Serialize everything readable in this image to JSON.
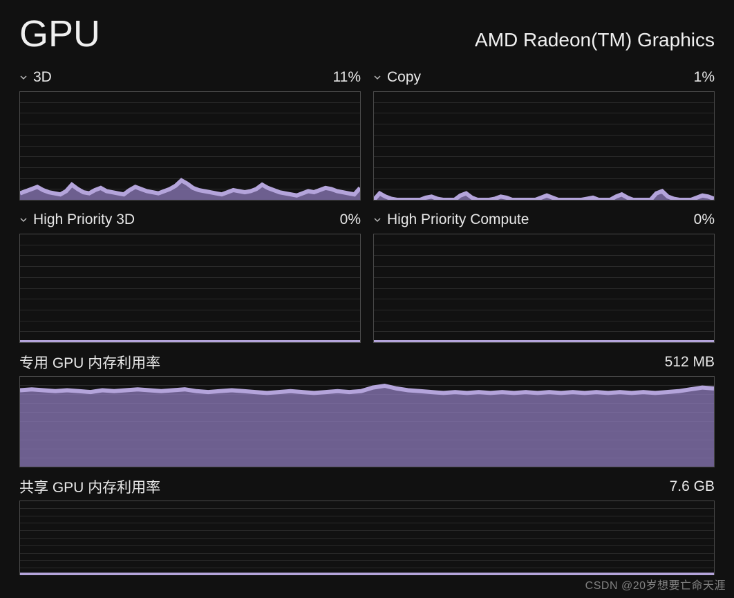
{
  "header": {
    "title": "GPU",
    "device": "AMD Radeon(TM) Graphics"
  },
  "colors": {
    "background": "#111111",
    "text": "#f0f0f0",
    "chart_border": "#4a4a4a",
    "grid": "#2a2a2a",
    "series_fill": "#917ec0",
    "series_fill_opacity": 0.72,
    "series_stroke": "#b4a4db"
  },
  "engine_panels": [
    {
      "id": "3d",
      "label": "3D",
      "value": "11%",
      "type": "area",
      "chart": {
        "ylim": [
          0,
          100
        ],
        "grid_rows": 10,
        "values": [
          6,
          8,
          10,
          12,
          9,
          7,
          6,
          5,
          8,
          14,
          10,
          7,
          6,
          9,
          11,
          8,
          7,
          6,
          5,
          9,
          12,
          10,
          8,
          7,
          6,
          8,
          10,
          13,
          18,
          15,
          11,
          9,
          8,
          7,
          6,
          5,
          7,
          9,
          8,
          7,
          8,
          10,
          14,
          11,
          9,
          7,
          6,
          5,
          4,
          6,
          8,
          7,
          9,
          11,
          10,
          8,
          7,
          6,
          5,
          11
        ]
      }
    },
    {
      "id": "copy",
      "label": "Copy",
      "value": "1%",
      "type": "area",
      "chart": {
        "ylim": [
          0,
          100
        ],
        "grid_rows": 10,
        "values": [
          0,
          6,
          3,
          1,
          0,
          0,
          0,
          0,
          0,
          2,
          3,
          1,
          0,
          0,
          0,
          4,
          6,
          2,
          0,
          0,
          0,
          1,
          3,
          2,
          0,
          0,
          0,
          0,
          0,
          2,
          4,
          2,
          0,
          0,
          0,
          0,
          0,
          1,
          2,
          0,
          0,
          0,
          3,
          5,
          2,
          0,
          0,
          0,
          0,
          6,
          8,
          3,
          1,
          0,
          0,
          0,
          2,
          4,
          3,
          1
        ]
      }
    },
    {
      "id": "hp3d",
      "label": "High Priority 3D",
      "value": "0%",
      "type": "area",
      "chart": {
        "ylim": [
          0,
          100
        ],
        "grid_rows": 10,
        "values": [
          0,
          0,
          0,
          0,
          0,
          0,
          0,
          0,
          0,
          0,
          0,
          0,
          0,
          0,
          0,
          0,
          0,
          0,
          0,
          0,
          0,
          0,
          0,
          0,
          0,
          0,
          0,
          0,
          0,
          0,
          0,
          0,
          0,
          0,
          0,
          0,
          0,
          0,
          0,
          0,
          0,
          0,
          0,
          0,
          0,
          0,
          0,
          0,
          0,
          0,
          0,
          0,
          0,
          0,
          0,
          0,
          0,
          0,
          0,
          0
        ]
      }
    },
    {
      "id": "hpcompute",
      "label": "High Priority Compute",
      "value": "0%",
      "type": "area",
      "chart": {
        "ylim": [
          0,
          100
        ],
        "grid_rows": 10,
        "values": [
          0,
          0,
          0,
          0,
          0,
          0,
          0,
          0,
          0,
          0,
          0,
          0,
          0,
          0,
          0,
          0,
          0,
          0,
          0,
          0,
          0,
          0,
          0,
          0,
          0,
          0,
          0,
          0,
          0,
          0,
          0,
          0,
          0,
          0,
          0,
          0,
          0,
          0,
          0,
          0,
          0,
          0,
          0,
          0,
          0,
          0,
          0,
          0,
          0,
          0,
          0,
          0,
          0,
          0,
          0,
          0,
          0,
          0,
          0,
          0
        ]
      }
    }
  ],
  "memory_panels": [
    {
      "id": "dedicated",
      "label": "专用 GPU 内存利用率",
      "value": "512 MB",
      "type": "area",
      "chart": {
        "ylim": [
          0,
          100
        ],
        "grid_rows": 10,
        "values": [
          85,
          86,
          85,
          84,
          85,
          84,
          83,
          85,
          84,
          85,
          86,
          85,
          84,
          85,
          86,
          84,
          83,
          84,
          85,
          84,
          83,
          82,
          83,
          84,
          83,
          82,
          83,
          84,
          83,
          84,
          88,
          90,
          87,
          85,
          84,
          83,
          82,
          83,
          82,
          83,
          82,
          83,
          82,
          83,
          82,
          83,
          82,
          83,
          82,
          83,
          82,
          83,
          82,
          83,
          82,
          83,
          84,
          86,
          88,
          87
        ]
      }
    },
    {
      "id": "shared",
      "label": "共享 GPU 内存利用率",
      "value": "7.6 GB",
      "type": "area",
      "partial": true,
      "chart": {
        "ylim": [
          0,
          100
        ],
        "grid_rows": 10,
        "values": [
          0.6,
          0.6,
          0.6,
          0.6,
          0.6,
          0.6,
          0.6,
          0.6,
          0.6,
          0.6,
          0.6,
          0.6,
          0.6,
          0.6,
          0.6,
          0.6,
          0.6,
          0.6,
          0.6,
          0.6,
          0.6,
          0.6,
          0.6,
          0.6,
          0.6,
          0.6,
          0.6,
          0.6,
          0.6,
          0.6,
          0.6,
          0.6,
          0.6,
          0.6,
          0.6,
          0.6,
          0.6,
          0.6,
          0.6,
          0.6,
          0.6,
          0.6,
          0.6,
          0.6,
          0.6,
          0.6,
          0.6,
          0.6,
          0.6,
          0.6,
          0.6,
          0.6,
          0.6,
          0.6,
          0.6,
          0.6,
          0.6,
          0.6,
          0.6,
          0.6
        ]
      }
    }
  ],
  "watermark": "CSDN @20岁想要亡命天涯"
}
